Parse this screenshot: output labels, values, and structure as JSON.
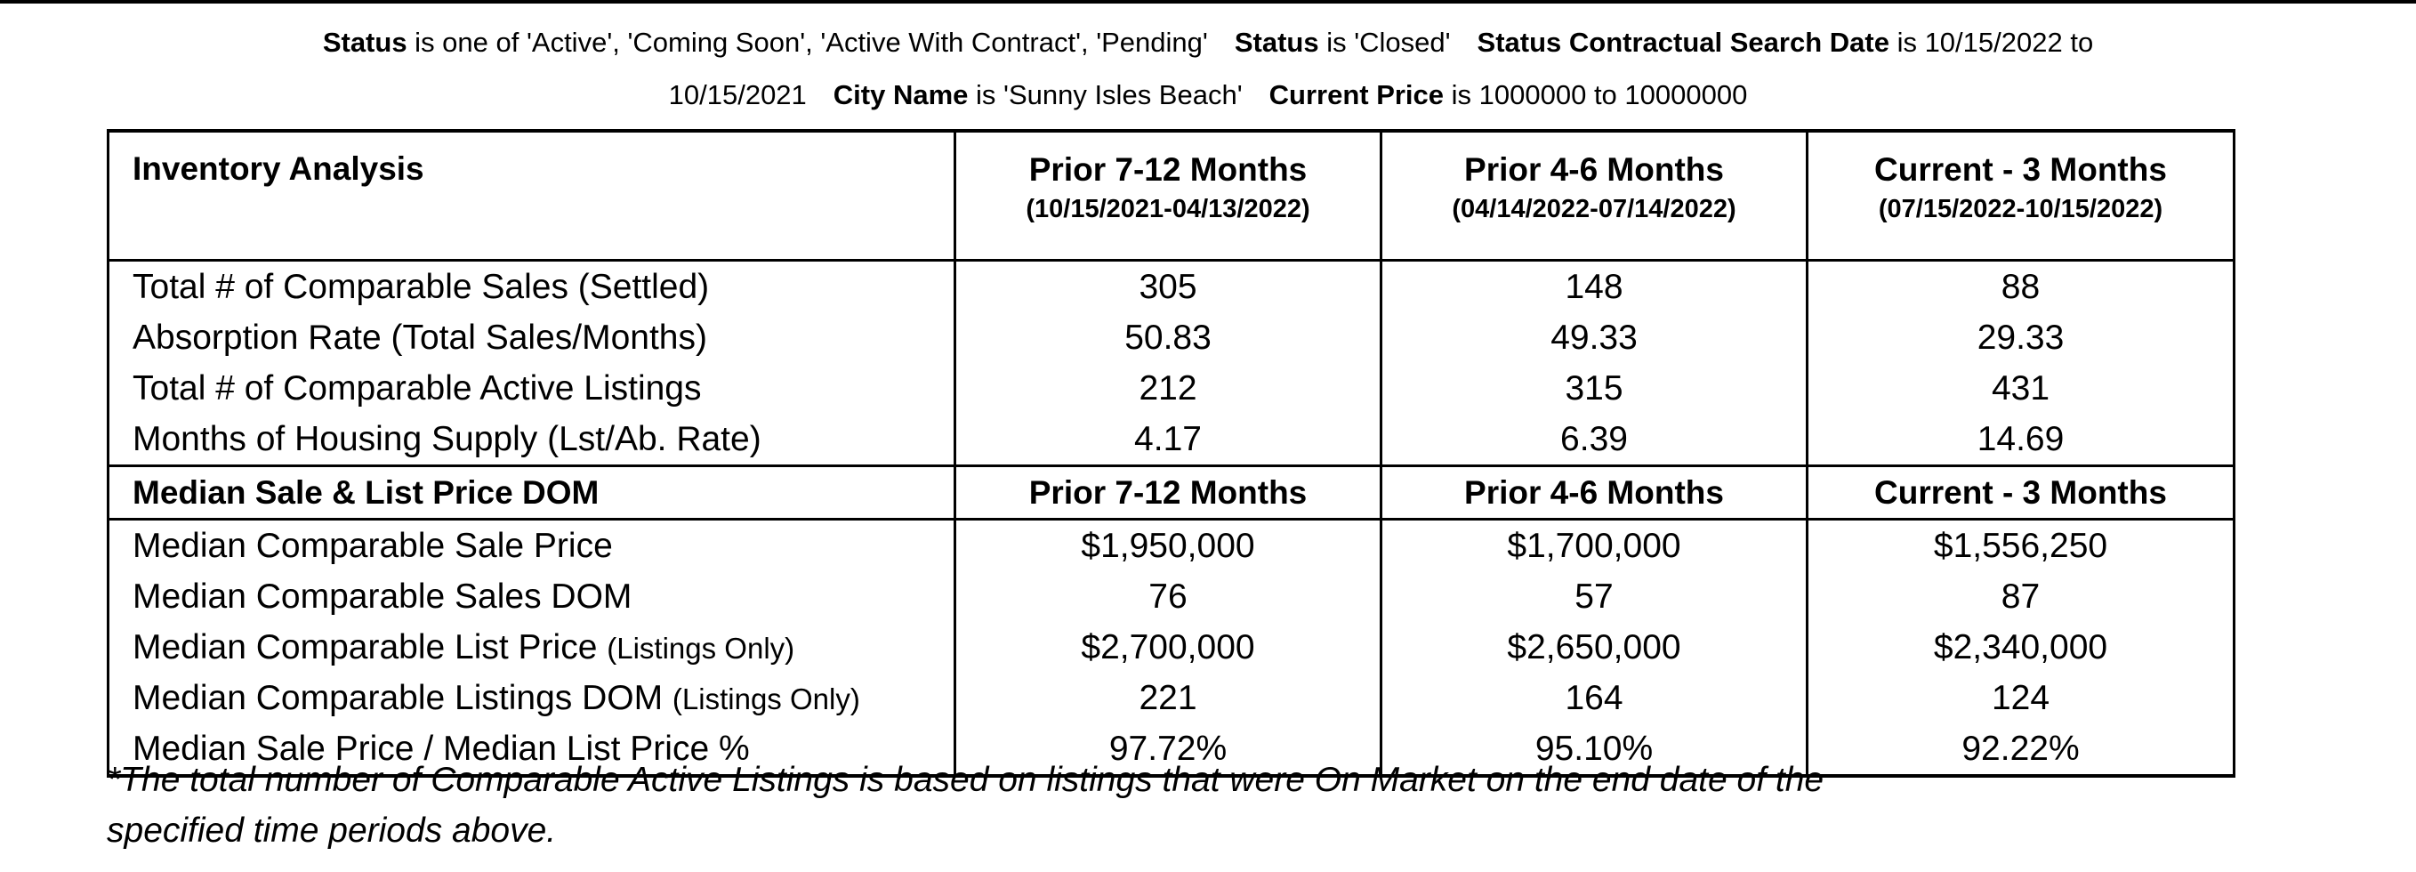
{
  "criteria": {
    "line1": [
      {
        "key": "Status",
        "text": " is one of 'Active', 'Coming Soon', 'Active With Contract', 'Pending'"
      },
      {
        "key": "Status",
        "text": " is 'Closed'"
      },
      {
        "key": "Status Contractual Search Date",
        "text": " is 10/15/2022 to"
      }
    ],
    "line2_prefix": "10/15/2021",
    "line2": [
      {
        "key": "City Name",
        "text": " is 'Sunny Isles Beach'"
      },
      {
        "key": "Current Price",
        "text": " is 1000000 to 10000000"
      }
    ]
  },
  "table": {
    "section1": {
      "title": "Inventory Analysis",
      "periods": [
        {
          "title": "Prior 7-12 Months",
          "range": "(10/15/2021-04/13/2022)"
        },
        {
          "title": "Prior 4-6 Months",
          "range": "(04/14/2022-07/14/2022)"
        },
        {
          "title": "Current - 3 Months",
          "range": "(07/15/2022-10/15/2022)"
        }
      ],
      "rows": [
        {
          "label": "Total # of Comparable Sales (Settled)",
          "values": [
            "305",
            "148",
            "88"
          ]
        },
        {
          "label": "Absorption Rate (Total Sales/Months)",
          "values": [
            "50.83",
            "49.33",
            "29.33"
          ]
        },
        {
          "label": "Total # of Comparable Active Listings",
          "values": [
            "212",
            "315",
            "431"
          ]
        },
        {
          "label": "Months of Housing Supply (Lst/Ab. Rate)",
          "values": [
            "4.17",
            "6.39",
            "14.69"
          ]
        }
      ]
    },
    "section2": {
      "title": "Median Sale & List Price DOM",
      "periods": [
        "Prior 7-12 Months",
        "Prior 4-6 Months",
        "Current - 3 Months"
      ],
      "rows": [
        {
          "label": "Median Comparable Sale Price",
          "suffix": "",
          "values": [
            "$1,950,000",
            "$1,700,000",
            "$1,556,250"
          ]
        },
        {
          "label": "Median Comparable Sales DOM",
          "suffix": "",
          "values": [
            "76",
            "57",
            "87"
          ]
        },
        {
          "label": "Median Comparable List Price ",
          "suffix": "(Listings Only)",
          "values": [
            "$2,700,000",
            "$2,650,000",
            "$2,340,000"
          ]
        },
        {
          "label": "Median Comparable Listings DOM ",
          "suffix": "(Listings Only)",
          "values": [
            "221",
            "164",
            "124"
          ]
        },
        {
          "label": "Median Sale Price / Median List Price %",
          "suffix": "",
          "values": [
            "97.72%",
            "95.10%",
            "92.22%"
          ]
        }
      ]
    }
  },
  "footnote": {
    "line1": "*The total number of Comparable Active Listings is based on listings that were On Market on the end date of the",
    "line2": "specified time periods above."
  }
}
